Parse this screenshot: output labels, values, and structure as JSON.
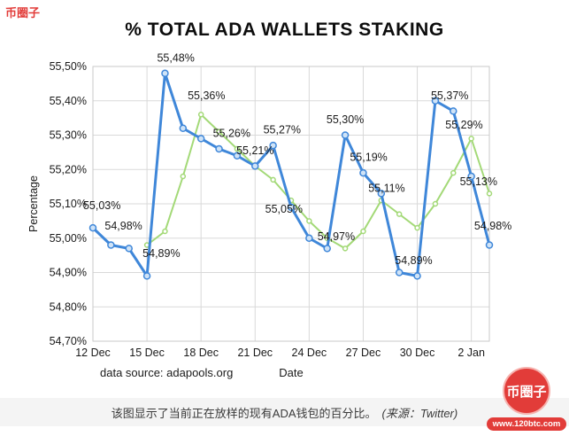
{
  "watermark": {
    "top_left": "币圈子",
    "logo_text": "币圈子",
    "logo_url": "www.120btc.com"
  },
  "caption": {
    "text": "该图显示了当前正在放样的现有ADA钱包的百分比。",
    "source": "(来源：Twitter)"
  },
  "chart_data": {
    "type": "line",
    "title": "% TOTAL ADA WALLETS STAKING",
    "xlabel": "Date",
    "ylabel": "Percentage",
    "footnote": "data source: adapools.org",
    "ylim": [
      54.7,
      55.5
    ],
    "days_total": 22,
    "grid": true,
    "legend": "none",
    "colors": {
      "grid": "#d9d9d9",
      "border": "#c9c9c9",
      "text": "#1a1a1a",
      "blue": "#3f87d9",
      "green": "#a3d977"
    },
    "y_ticks": [
      {
        "value": 55.5,
        "label": "55,50%"
      },
      {
        "value": 55.4,
        "label": "55,40%"
      },
      {
        "value": 55.3,
        "label": "55,30%"
      },
      {
        "value": 55.2,
        "label": "55,20%"
      },
      {
        "value": 55.1,
        "label": "55,10%"
      },
      {
        "value": 55.0,
        "label": "55,00%"
      },
      {
        "value": 54.9,
        "label": "54,90%"
      },
      {
        "value": 54.8,
        "label": "54,80%"
      },
      {
        "value": 54.7,
        "label": "54,70%"
      }
    ],
    "x_ticks": [
      {
        "day": 0,
        "label": "12 Dec"
      },
      {
        "day": 3,
        "label": "15 Dec"
      },
      {
        "day": 6,
        "label": "18 Dec"
      },
      {
        "day": 9,
        "label": "21 Dec"
      },
      {
        "day": 12,
        "label": "24 Dec"
      },
      {
        "day": 15,
        "label": "27 Dec"
      },
      {
        "day": 18,
        "label": "30 Dec"
      },
      {
        "day": 21,
        "label": "2 Jan"
      }
    ],
    "series": [
      {
        "name": "green-series",
        "color": "#a3d977",
        "width": 2,
        "marker_radius": 2.5,
        "marker_fill": "#ffffff",
        "points": [
          {
            "day": 3,
            "value": 54.98
          },
          {
            "day": 4,
            "value": 55.02
          },
          {
            "day": 5,
            "value": 55.18
          },
          {
            "day": 6,
            "value": 55.36
          },
          {
            "day": 7,
            "value": 55.31
          },
          {
            "day": 8,
            "value": 55.26
          },
          {
            "day": 9,
            "value": 55.21
          },
          {
            "day": 10,
            "value": 55.17
          },
          {
            "day": 11,
            "value": 55.11
          },
          {
            "day": 12,
            "value": 55.05
          },
          {
            "day": 13,
            "value": 55.0
          },
          {
            "day": 14,
            "value": 54.97
          },
          {
            "day": 15,
            "value": 55.02
          },
          {
            "day": 16,
            "value": 55.11
          },
          {
            "day": 17,
            "value": 55.07
          },
          {
            "day": 18,
            "value": 55.03
          },
          {
            "day": 19,
            "value": 55.1
          },
          {
            "day": 20,
            "value": 55.19
          },
          {
            "day": 21,
            "value": 55.29
          },
          {
            "day": 22,
            "value": 55.13
          }
        ]
      },
      {
        "name": "blue-series",
        "color": "#3f87d9",
        "width": 3,
        "marker_radius": 3.5,
        "marker_fill": "#cfe3f7",
        "points": [
          {
            "day": 0,
            "value": 55.03
          },
          {
            "day": 1,
            "value": 54.98
          },
          {
            "day": 2,
            "value": 54.97
          },
          {
            "day": 3,
            "value": 54.89
          },
          {
            "day": 4,
            "value": 55.48
          },
          {
            "day": 5,
            "value": 55.32
          },
          {
            "day": 6,
            "value": 55.29
          },
          {
            "day": 7,
            "value": 55.26
          },
          {
            "day": 8,
            "value": 55.24
          },
          {
            "day": 9,
            "value": 55.21
          },
          {
            "day": 10,
            "value": 55.27
          },
          {
            "day": 11,
            "value": 55.09
          },
          {
            "day": 12,
            "value": 55.0
          },
          {
            "day": 13,
            "value": 54.97
          },
          {
            "day": 14,
            "value": 55.3
          },
          {
            "day": 15,
            "value": 55.19
          },
          {
            "day": 16,
            "value": 55.13
          },
          {
            "day": 17,
            "value": 54.9
          },
          {
            "day": 18,
            "value": 54.89
          },
          {
            "day": 19,
            "value": 55.4
          },
          {
            "day": 20,
            "value": 55.37
          },
          {
            "day": 21,
            "value": 55.18
          },
          {
            "day": 22,
            "value": 54.98
          }
        ]
      }
    ],
    "annotations": [
      {
        "text": "55,03%",
        "day": 0.5,
        "value": 55.095
      },
      {
        "text": "54,98%",
        "day": 1.7,
        "value": 55.035
      },
      {
        "text": "54,89%",
        "day": 3.8,
        "value": 54.955
      },
      {
        "text": "55,48%",
        "day": 4.6,
        "value": 55.525
      },
      {
        "text": "55,36%",
        "day": 6.3,
        "value": 55.415
      },
      {
        "text": "55,26%",
        "day": 7.7,
        "value": 55.305
      },
      {
        "text": "55,21%",
        "day": 9.0,
        "value": 55.255
      },
      {
        "text": "55,27%",
        "day": 10.5,
        "value": 55.315
      },
      {
        "text": "55,05%",
        "day": 10.6,
        "value": 55.085
      },
      {
        "text": "54,97%",
        "day": 13.5,
        "value": 55.005
      },
      {
        "text": "55,30%",
        "day": 14.0,
        "value": 55.345
      },
      {
        "text": "55,19%",
        "day": 15.3,
        "value": 55.235
      },
      {
        "text": "55,11%",
        "day": 16.3,
        "value": 55.145
      },
      {
        "text": "54,89%",
        "day": 17.8,
        "value": 54.935
      },
      {
        "text": "55,37%",
        "day": 19.8,
        "value": 55.415
      },
      {
        "text": "55,29%",
        "day": 20.6,
        "value": 55.33
      },
      {
        "text": "55,13%",
        "day": 21.4,
        "value": 55.165
      },
      {
        "text": "54,98%",
        "day": 22.2,
        "value": 55.035
      }
    ]
  }
}
